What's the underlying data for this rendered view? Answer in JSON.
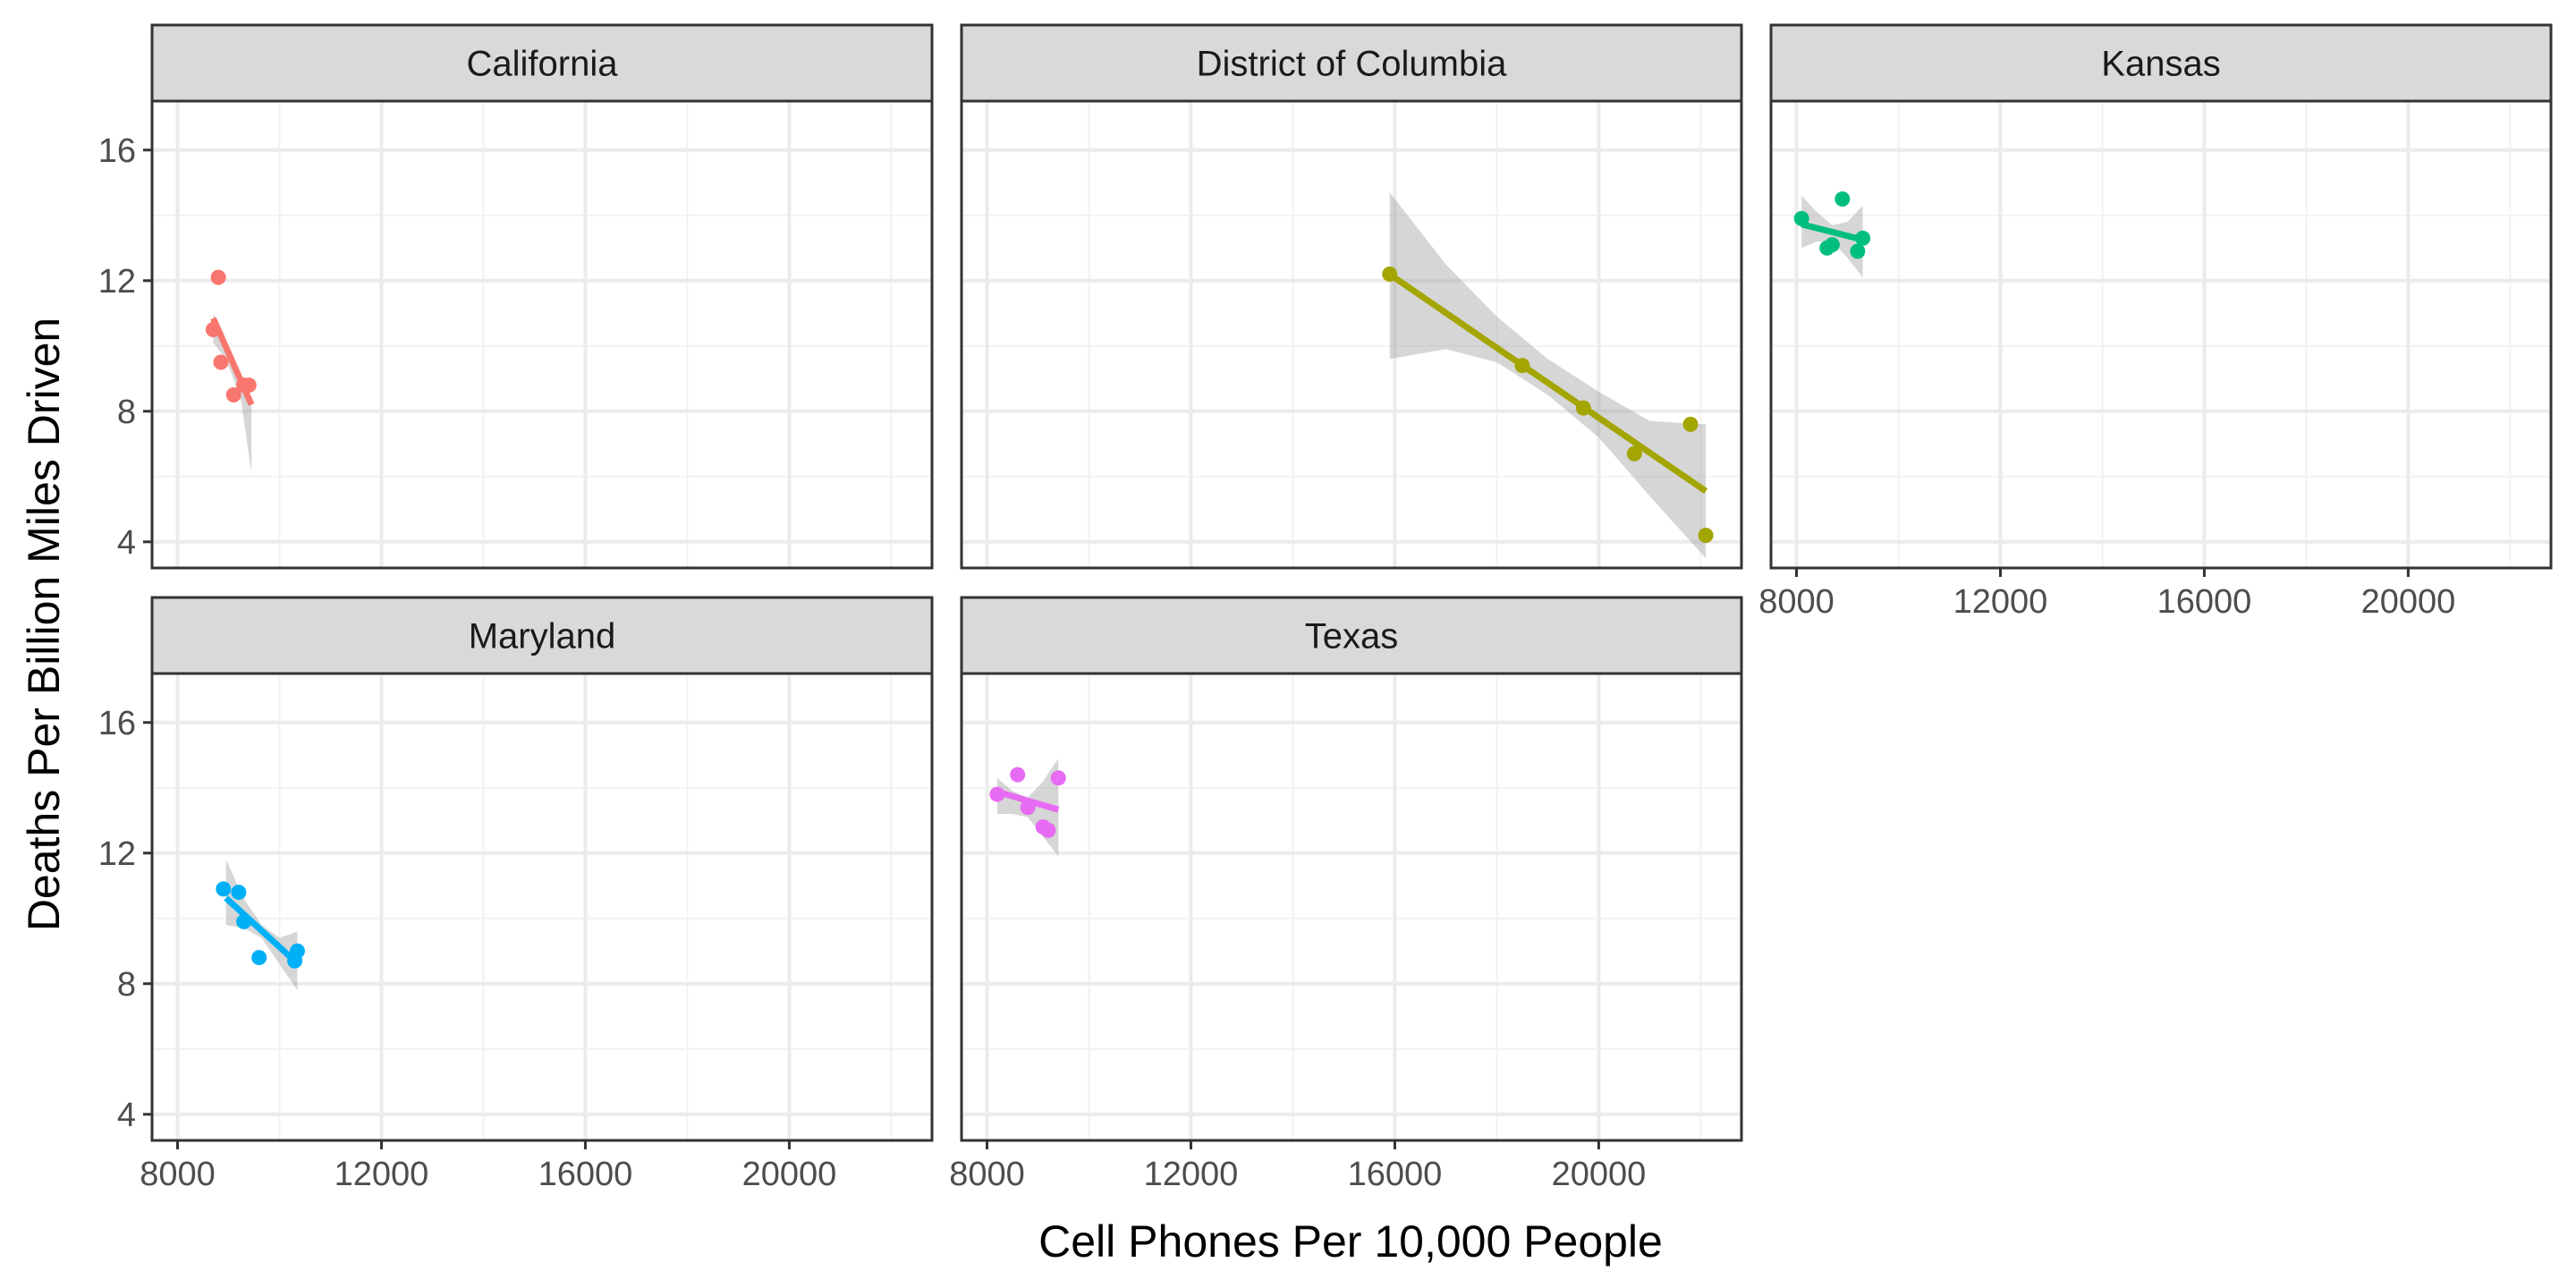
{
  "chart_data": {
    "type": "scatter",
    "xlabel": "Cell Phones Per 10,000 People",
    "ylabel": "Deaths Per Billion Miles Driven",
    "xlim": [
      7500,
      22800
    ],
    "ylim": [
      3.2,
      17.5
    ],
    "x_ticks": [
      8000,
      12000,
      16000,
      20000
    ],
    "y_ticks": [
      4,
      8,
      12,
      16
    ],
    "grid": true,
    "smooth": "linear fit with confidence band",
    "panels": [
      {
        "strip": "California",
        "color": "#F8766D",
        "points": [
          [
            8800,
            12.1
          ],
          [
            8700,
            10.5
          ],
          [
            8850,
            9.5
          ],
          [
            9100,
            8.5
          ],
          [
            9300,
            8.8
          ],
          [
            9400,
            8.8
          ]
        ],
        "fit_x": [
          8700,
          9450
        ],
        "ci": [
          [
            8700,
            10.1,
            11.0
          ],
          [
            8900,
            9.7,
            10.4
          ],
          [
            9075,
            9.1,
            9.6
          ],
          [
            9250,
            8.3,
            9.0
          ],
          [
            9450,
            6.1,
            8.2
          ]
        ]
      },
      {
        "strip": "District of Columbia",
        "color": "#A3A500",
        "points": [
          [
            15900,
            12.2
          ],
          [
            18500,
            9.4
          ],
          [
            19700,
            8.1
          ],
          [
            20700,
            6.7
          ],
          [
            21800,
            7.6
          ],
          [
            22100,
            4.2
          ]
        ],
        "fit_x": [
          15900,
          22100
        ],
        "ci": [
          [
            15900,
            9.6,
            14.7
          ],
          [
            17000,
            9.9,
            12.5
          ],
          [
            18000,
            9.5,
            10.9
          ],
          [
            19000,
            8.5,
            9.6
          ],
          [
            20000,
            7.2,
            8.6
          ],
          [
            21000,
            5.4,
            7.7
          ],
          [
            22100,
            3.5,
            7.6
          ]
        ]
      },
      {
        "strip": "Kansas",
        "color": "#00BF7D",
        "points": [
          [
            8100,
            13.9
          ],
          [
            8900,
            14.5
          ],
          [
            8600,
            13.0
          ],
          [
            8700,
            13.1
          ],
          [
            9200,
            12.9
          ],
          [
            9300,
            13.3
          ]
        ],
        "fit_x": [
          8100,
          9300
        ],
        "ci": [
          [
            8100,
            13.0,
            14.6
          ],
          [
            8400,
            13.2,
            14.1
          ],
          [
            8700,
            13.2,
            13.7
          ],
          [
            9000,
            12.7,
            13.8
          ],
          [
            9300,
            12.1,
            14.3
          ]
        ]
      },
      {
        "strip": "Maryland",
        "color": "#00B0F6",
        "points": [
          [
            8900,
            10.9
          ],
          [
            9200,
            10.8
          ],
          [
            9300,
            9.9
          ],
          [
            9600,
            8.8
          ],
          [
            10300,
            8.7
          ],
          [
            10350,
            9.0
          ]
        ],
        "fit_x": [
          8950,
          10350
        ],
        "ci": [
          [
            8950,
            9.8,
            11.8
          ],
          [
            9300,
            9.7,
            10.6
          ],
          [
            9650,
            9.4,
            9.8
          ],
          [
            10000,
            8.6,
            9.4
          ],
          [
            10350,
            7.8,
            9.6
          ]
        ]
      },
      {
        "strip": "Texas",
        "color": "#E76BF3",
        "points": [
          [
            8200,
            13.8
          ],
          [
            8600,
            14.4
          ],
          [
            8800,
            13.4
          ],
          [
            9100,
            12.8
          ],
          [
            9200,
            12.7
          ],
          [
            9400,
            14.3
          ]
        ],
        "fit_x": [
          8200,
          9400
        ],
        "ci": [
          [
            8200,
            13.2,
            14.3
          ],
          [
            8500,
            13.2,
            13.9
          ],
          [
            8800,
            13.1,
            13.7
          ],
          [
            9100,
            12.5,
            14.2
          ],
          [
            9400,
            11.9,
            14.9
          ]
        ]
      }
    ]
  }
}
